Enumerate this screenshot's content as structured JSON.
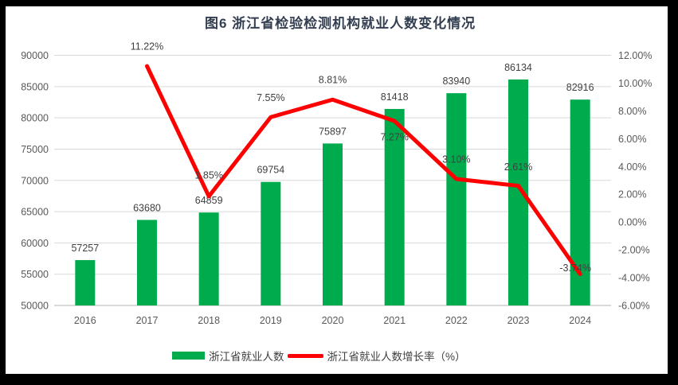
{
  "title": "图6  浙江省检验检测机构就业人数变化情况",
  "legend": [
    {
      "label": "浙江省就业人数",
      "swatch": "bar",
      "color": "#00ab4e"
    },
    {
      "label": "浙江省就业人数增长率（%）",
      "swatch": "line",
      "color": "#fe0000"
    }
  ],
  "colors": {
    "bar": "#00ab4e",
    "line": "#fe0000",
    "grid": "#d9d9d9",
    "axis_tick_text": "#595959",
    "data_label_text": "#404040",
    "title_text": "#333f50",
    "frame": "#000000",
    "background": "#ffffff"
  },
  "chart_data": {
    "type": "bar",
    "subtype": "bar+line-combo",
    "title": "图6  浙江省检验检测机构就业人数变化情况",
    "categories": [
      "2016",
      "2017",
      "2018",
      "2019",
      "2020",
      "2021",
      "2022",
      "2023",
      "2024"
    ],
    "series": [
      {
        "name": "浙江省就业人数",
        "type": "bar",
        "axis": "left",
        "values": [
          57257,
          63680,
          64859,
          69754,
          75897,
          81418,
          83940,
          86134,
          82916
        ],
        "labels": [
          "57257",
          "63680",
          "64859",
          "69754",
          "75897",
          "81418",
          "83940",
          "86134",
          "82916"
        ]
      },
      {
        "name": "浙江省就业人数增长率（%）",
        "type": "line",
        "axis": "right",
        "values": [
          null,
          11.22,
          1.85,
          7.55,
          8.81,
          7.27,
          3.1,
          2.61,
          -3.74
        ],
        "labels": [
          null,
          "11.22%",
          "1.85%",
          "7.55%",
          "8.81%",
          "7.27%",
          "3.10%",
          "2.61%",
          "-3.74%"
        ],
        "label_offsets": [
          [
            0,
            0
          ],
          [
            0,
            -25
          ],
          [
            0,
            -27
          ],
          [
            0,
            -25
          ],
          [
            0,
            -25
          ],
          [
            0,
            20
          ],
          [
            0,
            -25
          ],
          [
            0,
            -24
          ],
          [
            -6,
            -8
          ]
        ]
      }
    ],
    "left_axis": {
      "min": 50000,
      "max": 90000,
      "step": 5000,
      "ticks": [
        "90000",
        "85000",
        "80000",
        "75000",
        "70000",
        "65000",
        "60000",
        "55000",
        "50000"
      ]
    },
    "right_axis": {
      "min": -6,
      "max": 12,
      "step": 2,
      "ticks": [
        "12.00%",
        "10.00%",
        "8.00%",
        "6.00%",
        "4.00%",
        "2.00%",
        "0.00%",
        "-2.00%",
        "-4.00%",
        "-6.00%"
      ]
    },
    "grid": true,
    "legend_position": "bottom"
  }
}
